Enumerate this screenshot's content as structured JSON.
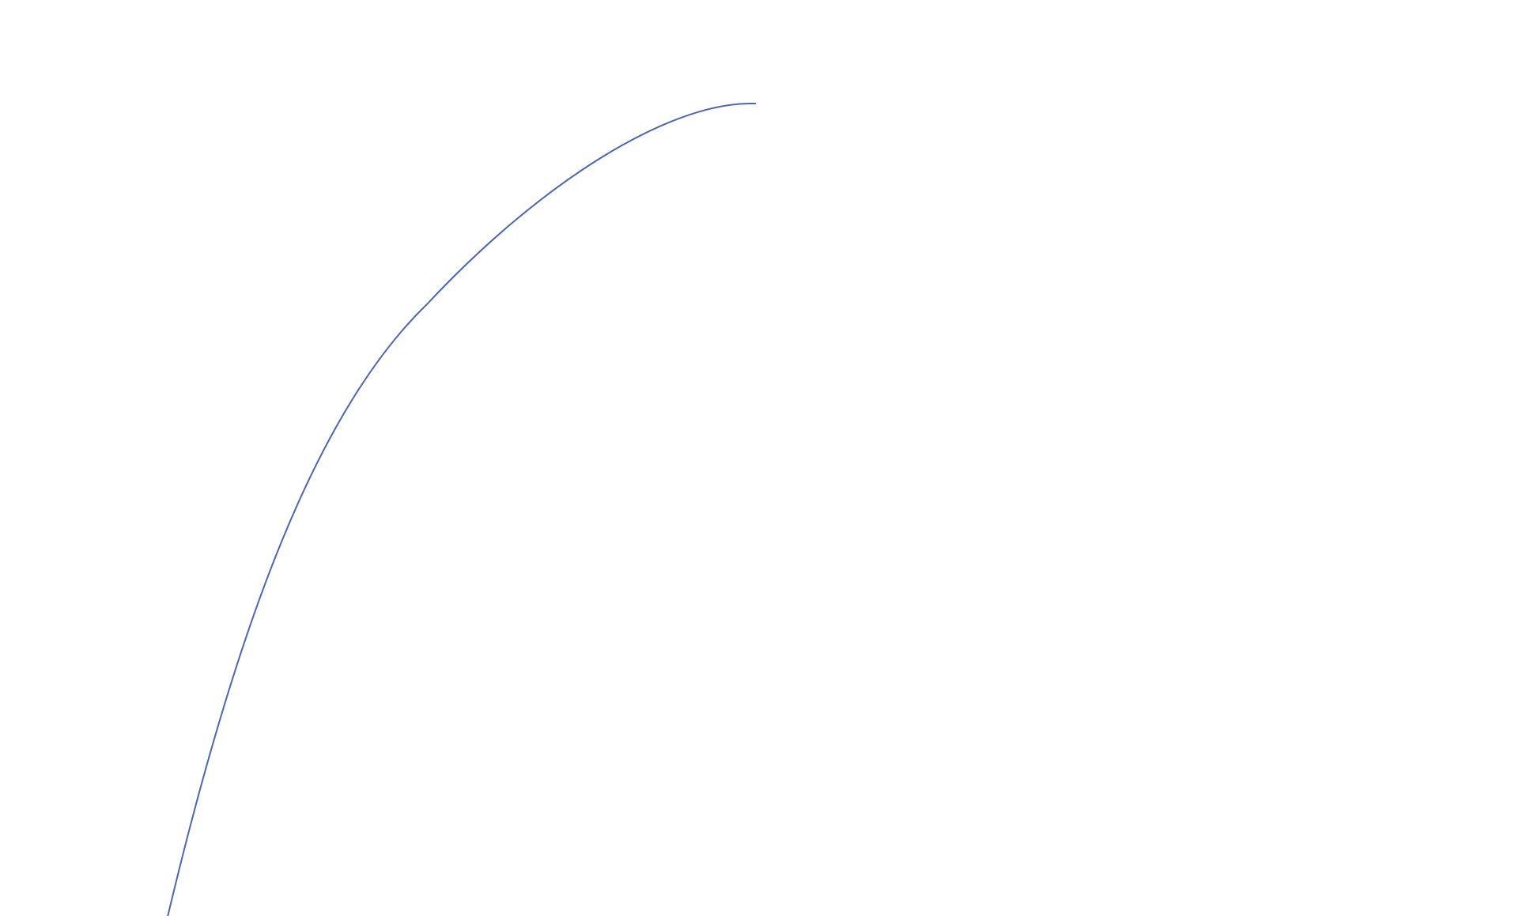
{
  "chart_data": {
    "type": "line",
    "title": "",
    "xlabel": "",
    "ylabel": "",
    "grid": false,
    "legend": "none",
    "series": [
      {
        "color": "#4a66b5"
      }
    ]
  }
}
